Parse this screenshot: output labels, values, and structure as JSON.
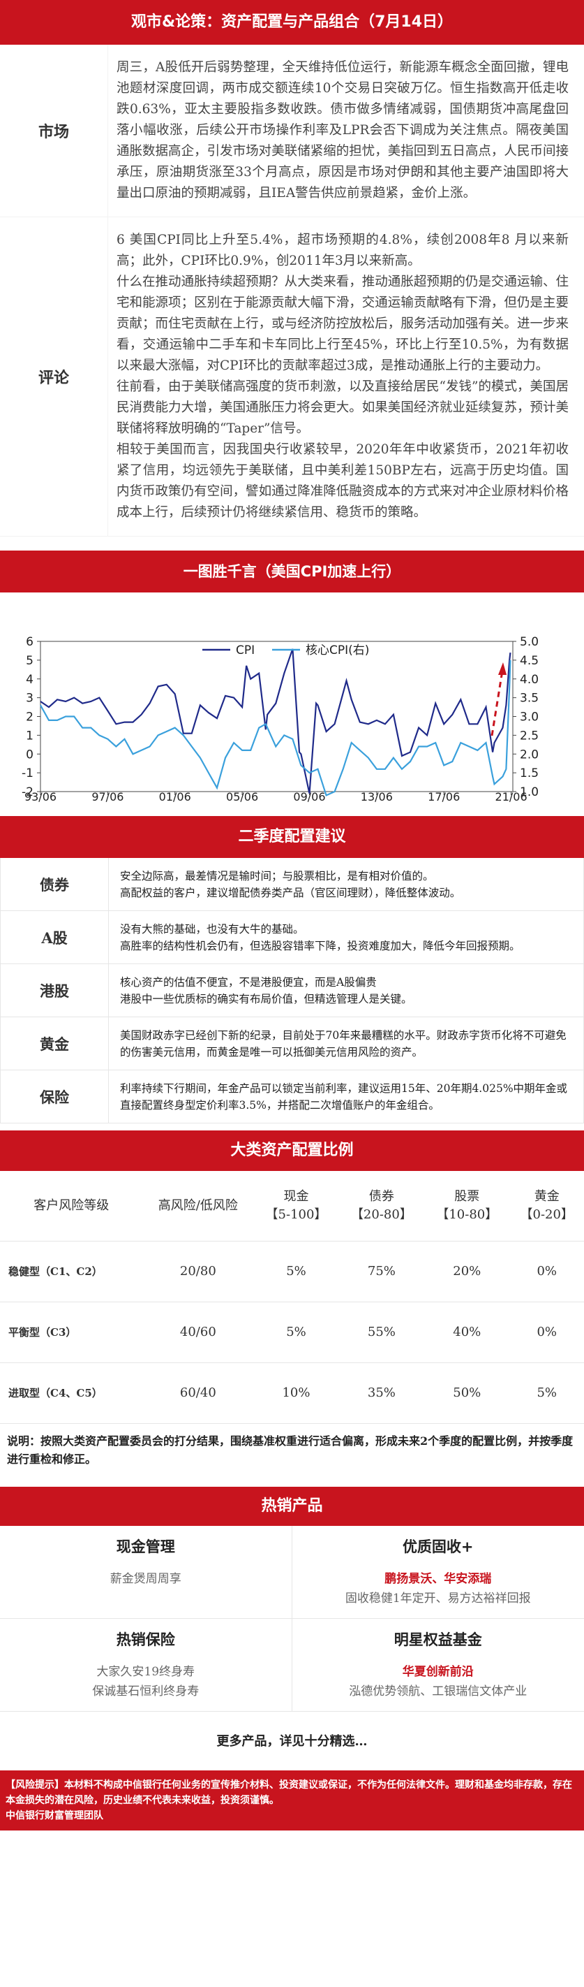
{
  "header": {
    "title": "观市&论策：资产配置与产品组合（7月14日）"
  },
  "market": {
    "label": "市场",
    "text": "周三，A股低开后弱势整理，全天维持低位运行，新能源车概念全面回撤，锂电池题材深度回调，两市成交额连续10个交易日突破万亿。恒生指数高开低走收跌0.63%，亚太主要股指多数收跌。债市做多情绪减弱，国债期货冲高尾盘回落小幅收涨，后续公开市场操作利率及LPR会否下调成为关注焦点。隔夜美国通胀数据高企，引发市场对美联储紧缩的担忧，美指回到五日高点，人民币间接承压，原油期货涨至33个月高点，原因是市场对伊朗和其他主要产油国即将大量出口原油的预期减弱，且IEA警告供应前景趋紧，金价上涨。"
  },
  "review": {
    "label": "评论",
    "paragraphs": [
      "6 美国CPI同比上升至5.4%，超市场预期的4.8%，续创2008年8 月以来新高；此外，CPI环比0.9%，创2011年3月以来新高。",
      "什么在推动通胀持续超预期？从大类来看，推动通胀超预期的仍是交通运输、住宅和能源项；区别在于能源贡献大幅下滑，交通运输贡献略有下滑，但仍是主要贡献；而住宅贡献在上行，或与经济防控放松后，服务活动加强有关。进一步来看，交通运输中二手车和卡车同比上行至45%，环比上行至10.5%，为有数据以来最大涨幅，对CPI环比的贡献率超过3成，是推动通胀上行的主要动力。",
      "往前看，由于美联储高强度的货币刺激，以及直接给居民“发钱”的模式，美国居民消费能力大增，美国通胀压力将会更大。如果美国经济就业延续复苏，预计美联储将释放明确的“Taper”信号。",
      "相较于美国而言，因我国央行收紧较早，2020年年中收紧货币，2021年初收紧了信用，均远领先于美联储，且中美利差150BP左右，远高于历史均值。国内货币政策仍有空间，譬如通过降准降低融资成本的方式来对冲企业原材料价格成本上行，后续预计仍将继续紧信用、稳货币的策略。"
    ]
  },
  "chart_section": {
    "title": "一图胜千言（美国CPI加速上行）"
  },
  "chart_data": {
    "type": "line",
    "title": "",
    "series": [
      {
        "name": "CPI",
        "axis": "left",
        "color": "#1f2a8a"
      },
      {
        "name": "核心CPI(右)",
        "axis": "right",
        "color": "#3aa0dc"
      }
    ],
    "x_ticks": [
      "93/06",
      "97/06",
      "01/06",
      "05/06",
      "09/06",
      "13/06",
      "17/06",
      "21/06"
    ],
    "x_range": [
      1993.5,
      2021.6
    ],
    "y_left": [
      -2,
      6
    ],
    "y_left_ticks": [
      -2,
      -1,
      0,
      1,
      2,
      3,
      4,
      5,
      6
    ],
    "y_right": [
      1.0,
      5.0
    ],
    "y_right_ticks": [
      "1.0",
      "1.5",
      "2.0",
      "2.5",
      "3.0",
      "3.5",
      "4.0",
      "4.5",
      "5.0"
    ],
    "cpi": [
      [
        1993.5,
        2.8
      ],
      [
        1994,
        2.5
      ],
      [
        1994.5,
        2.9
      ],
      [
        1995,
        2.8
      ],
      [
        1995.5,
        3.0
      ],
      [
        1996,
        2.7
      ],
      [
        1996.5,
        2.8
      ],
      [
        1997,
        3.0
      ],
      [
        1997.5,
        2.3
      ],
      [
        1998,
        1.6
      ],
      [
        1998.5,
        1.7
      ],
      [
        1999,
        1.7
      ],
      [
        1999.5,
        2.1
      ],
      [
        2000,
        2.7
      ],
      [
        2000.5,
        3.6
      ],
      [
        2001,
        3.7
      ],
      [
        2001.5,
        3.2
      ],
      [
        2002,
        1.1
      ],
      [
        2002.5,
        1.1
      ],
      [
        2003,
        2.6
      ],
      [
        2003.5,
        2.2
      ],
      [
        2004,
        1.9
      ],
      [
        2004.5,
        3.1
      ],
      [
        2005,
        3.0
      ],
      [
        2005.5,
        2.5
      ],
      [
        2005.75,
        4.7
      ],
      [
        2006,
        4.0
      ],
      [
        2006.5,
        4.3
      ],
      [
        2006.9,
        1.3
      ],
      [
        2007,
        2.1
      ],
      [
        2007.5,
        2.7
      ],
      [
        2008,
        4.3
      ],
      [
        2008.5,
        5.6
      ],
      [
        2008.9,
        0.1
      ],
      [
        2009,
        0.0
      ],
      [
        2009.5,
        -2.1
      ],
      [
        2009.9,
        2.7
      ],
      [
        2010,
        2.6
      ],
      [
        2010.5,
        1.2
      ],
      [
        2011,
        1.6
      ],
      [
        2011.7,
        3.9
      ],
      [
        2012,
        2.9
      ],
      [
        2012.5,
        1.7
      ],
      [
        2013,
        1.6
      ],
      [
        2013.5,
        1.8
      ],
      [
        2014,
        1.6
      ],
      [
        2014.5,
        2.1
      ],
      [
        2015,
        -0.1
      ],
      [
        2015.5,
        0.1
      ],
      [
        2016,
        1.4
      ],
      [
        2016.5,
        1.0
      ],
      [
        2017,
        2.7
      ],
      [
        2017.5,
        1.6
      ],
      [
        2018,
        2.1
      ],
      [
        2018.5,
        2.9
      ],
      [
        2019,
        1.6
      ],
      [
        2019.5,
        1.6
      ],
      [
        2020,
        2.5
      ],
      [
        2020.4,
        0.1
      ],
      [
        2020.5,
        0.6
      ],
      [
        2021,
        1.4
      ],
      [
        2021.2,
        2.6
      ],
      [
        2021.4,
        5.0
      ],
      [
        2021.45,
        5.4
      ]
    ],
    "core_cpi": [
      [
        1993.5,
        3.3
      ],
      [
        1994,
        2.9
      ],
      [
        1994.5,
        2.9
      ],
      [
        1995,
        3.0
      ],
      [
        1995.5,
        3.0
      ],
      [
        1996,
        2.7
      ],
      [
        1996.5,
        2.7
      ],
      [
        1997,
        2.5
      ],
      [
        1997.5,
        2.4
      ],
      [
        1998,
        2.2
      ],
      [
        1998.5,
        2.4
      ],
      [
        1999,
        2.0
      ],
      [
        1999.5,
        2.1
      ],
      [
        2000,
        2.2
      ],
      [
        2000.5,
        2.5
      ],
      [
        2001,
        2.6
      ],
      [
        2001.5,
        2.7
      ],
      [
        2002,
        2.5
      ],
      [
        2002.5,
        2.2
      ],
      [
        2003,
        1.9
      ],
      [
        2003.5,
        1.5
      ],
      [
        2004,
        1.1
      ],
      [
        2004.5,
        1.9
      ],
      [
        2005,
        2.3
      ],
      [
        2005.5,
        2.1
      ],
      [
        2006,
        2.1
      ],
      [
        2006.5,
        2.7
      ],
      [
        2006.9,
        2.8
      ],
      [
        2007,
        2.7
      ],
      [
        2007.5,
        2.2
      ],
      [
        2008,
        2.5
      ],
      [
        2008.5,
        2.4
      ],
      [
        2009,
        1.7
      ],
      [
        2009.5,
        1.5
      ],
      [
        2010,
        1.6
      ],
      [
        2010.5,
        0.9
      ],
      [
        2011,
        1.0
      ],
      [
        2011.5,
        1.6
      ],
      [
        2012,
        2.3
      ],
      [
        2012.5,
        2.1
      ],
      [
        2013,
        1.9
      ],
      [
        2013.5,
        1.6
      ],
      [
        2014,
        1.6
      ],
      [
        2014.5,
        1.9
      ],
      [
        2015,
        1.6
      ],
      [
        2015.5,
        1.8
      ],
      [
        2016,
        2.2
      ],
      [
        2016.5,
        2.2
      ],
      [
        2017,
        2.3
      ],
      [
        2017.5,
        1.7
      ],
      [
        2018,
        1.8
      ],
      [
        2018.5,
        2.3
      ],
      [
        2019,
        2.2
      ],
      [
        2019.5,
        2.1
      ],
      [
        2020,
        2.3
      ],
      [
        2020.4,
        1.4
      ],
      [
        2020.5,
        1.2
      ],
      [
        2021,
        1.4
      ],
      [
        2021.2,
        1.6
      ],
      [
        2021.4,
        3.8
      ],
      [
        2021.45,
        4.5
      ]
    ],
    "arrow_color": "#c8141e"
  },
  "config_section": {
    "title": "二季度配置建议",
    "rows": [
      {
        "label": "债券",
        "lines": [
          "安全边际高，最差情况是输时间；与股票相比，是有相对价值的。",
          "高配权益的客户，建议增配债券类产品（官区间理财），降低整体波动。"
        ]
      },
      {
        "label": "A股",
        "lines": [
          "没有大熊的基础，也没有大牛的基础。",
          "高胜率的结构性机会仍有，但选股容错率下降，投资难度加大，降低今年回报预期。"
        ]
      },
      {
        "label": "港股",
        "lines": [
          "核心资产的估值不便宜，不是港股便宜，而是A股偏贵",
          "港股中一些优质标的确实有布局价值，但精选管理人是关键。"
        ]
      },
      {
        "label": "黄金",
        "lines": [
          "美国财政赤字已经创下新的纪录，目前处于70年来最糟糕的水平。财政赤字货币化将不可避免的伤害美元信用，而黄金是唯一可以抵御美元信用风险的资产。"
        ]
      },
      {
        "label": "保险",
        "lines": [
          "利率持续下行期间，年金产品可以锁定当前利率，建议运用15年、20年期4.025%中期年金或直接配置终身型定价利率3.5%，并搭配二次增值账户的年金组合。"
        ]
      }
    ]
  },
  "ratio_section": {
    "title": "大类资产配置比例",
    "headers": [
      {
        "line1": "客户风险等级",
        "line2": ""
      },
      {
        "line1": "高风险/低风险",
        "line2": ""
      },
      {
        "line1": "现金",
        "line2": "【5-100】"
      },
      {
        "line1": "债券",
        "line2": "【20-80】"
      },
      {
        "line1": "股票",
        "line2": "【10-80】"
      },
      {
        "line1": "黄金",
        "line2": "【0-20】"
      }
    ],
    "rows": [
      {
        "level": "稳健型（C1、C2）",
        "ratio": "20/80",
        "cash": "5%",
        "bond": "75%",
        "stock": "20%",
        "gold": "0%"
      },
      {
        "level": "平衡型（C3）",
        "ratio": "40/60",
        "cash": "5%",
        "bond": "55%",
        "stock": "40%",
        "gold": "0%"
      },
      {
        "level": "进取型（C4、C5）",
        "ratio": "60/40",
        "cash": "10%",
        "bond": "35%",
        "stock": "50%",
        "gold": "5%"
      }
    ],
    "note": "说明：按照大类资产配置委员会的打分结果，围绕基准权重进行适合偏离，形成未来2个季度的配置比例，并按季度进行重检和修正。"
  },
  "hot_section": {
    "title": "热销产品",
    "cells": [
      {
        "title": "现金管理",
        "red": "",
        "lines": [
          "薪金煲周周享"
        ]
      },
      {
        "title": "优质固收+",
        "red": "鹏扬景沃、华安添瑞",
        "lines": [
          "固收稳健1年定开、易方达裕祥回报"
        ]
      },
      {
        "title": "热销保险",
        "red": "",
        "lines": [
          "大家久安19终身寿",
          "保诚基石恒利终身寿"
        ]
      },
      {
        "title": "明星权益基金",
        "red": "华夏创新前沿",
        "lines": [
          "泓德优势领航、工银瑞信文体产业"
        ]
      }
    ],
    "more": "更多产品，详见十分精选…"
  },
  "risk": {
    "text": "【风险提示】本材料不构成中信银行任何业务的宣传推介材料、投资建议或保证，不作为任何法律文件。理财和基金均非存款，存在本金损失的潜在风险，历史业绩不代表未来收益，投资须谨慎。",
    "signature": "中信银行财富管理团队"
  }
}
